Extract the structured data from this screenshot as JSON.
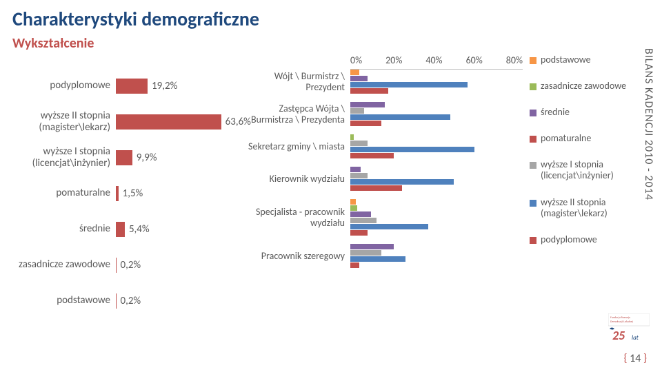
{
  "title": "Charakterystyki demograficzne",
  "subtitle": "Wykształcenie",
  "side_label": "BILANS KADENCJI 2010 - 2014",
  "page_number": "14",
  "chart1": {
    "type": "bar-horizontal",
    "max": 75,
    "bar_color": "#c0504d",
    "label_color": "#595959",
    "rows": [
      {
        "label": "podyplomowe",
        "value": 19.2,
        "text": "19,2%"
      },
      {
        "label": "wyższe II stopnia (magister\\lekarz)",
        "value": 63.6,
        "text": "63,6%"
      },
      {
        "label": "wyższe I stopnia (licencjat\\inżynier)",
        "value": 9.9,
        "text": "9,9%"
      },
      {
        "label": "pomaturalne",
        "value": 1.5,
        "text": "1,5%"
      },
      {
        "label": "średnie",
        "value": 5.4,
        "text": "5,4%"
      },
      {
        "label": "zasadnicze zawodowe",
        "value": 0.2,
        "text": "0,2%"
      },
      {
        "label": "podstawowe",
        "value": 0.2,
        "text": "0,2%"
      }
    ]
  },
  "chart2": {
    "type": "grouped-bar-horizontal",
    "max": 100,
    "axis_ticks": [
      "0%",
      "20%",
      "40%",
      "60%",
      "80%"
    ],
    "series_colors": {
      "podstawowe": "#f79646",
      "zasadnicze": "#9bbb59",
      "srednie": "#8064a2",
      "pomaturalne": "#c0504d",
      "wyzsze1": "#a6a6a6",
      "wyzsze2": "#4f81bd",
      "podyplomowe": "#c0504d"
    },
    "rows": [
      {
        "label": "Wójt \\ Burmistrz \\ Prezydent",
        "bars": [
          {
            "c": "#f79646",
            "v": 5
          },
          {
            "c": "#8064a2",
            "v": 10
          },
          {
            "c": "#4f81bd",
            "v": 68
          },
          {
            "c": "#c0504d",
            "v": 22
          }
        ]
      },
      {
        "label": "Zastępca Wójta \\ Burmistrza \\ Prezydenta",
        "bars": [
          {
            "c": "#8064a2",
            "v": 20
          },
          {
            "c": "#a6a6a6",
            "v": 8
          },
          {
            "c": "#4f81bd",
            "v": 58
          },
          {
            "c": "#c0504d",
            "v": 18
          }
        ]
      },
      {
        "label": "Sekretarz gminy \\ miasta",
        "bars": [
          {
            "c": "#9bbb59",
            "v": 2
          },
          {
            "c": "#a6a6a6",
            "v": 10
          },
          {
            "c": "#4f81bd",
            "v": 72
          },
          {
            "c": "#c0504d",
            "v": 25
          }
        ]
      },
      {
        "label": "Kierownik wydziału",
        "bars": [
          {
            "c": "#8064a2",
            "v": 6
          },
          {
            "c": "#a6a6a6",
            "v": 10
          },
          {
            "c": "#4f81bd",
            "v": 60
          },
          {
            "c": "#c0504d",
            "v": 30
          }
        ]
      },
      {
        "label": "Specjalista - pracownik wydziału",
        "bars": [
          {
            "c": "#f79646",
            "v": 3
          },
          {
            "c": "#9bbb59",
            "v": 4
          },
          {
            "c": "#8064a2",
            "v": 12
          },
          {
            "c": "#a6a6a6",
            "v": 15
          },
          {
            "c": "#4f81bd",
            "v": 45
          },
          {
            "c": "#c0504d",
            "v": 10
          }
        ]
      },
      {
        "label": "Pracownik szeregowy",
        "bars": [
          {
            "c": "#8064a2",
            "v": 25
          },
          {
            "c": "#a6a6a6",
            "v": 18
          },
          {
            "c": "#4f81bd",
            "v": 32
          },
          {
            "c": "#c0504d",
            "v": 5
          }
        ]
      }
    ]
  },
  "legend": [
    {
      "color": "#f79646",
      "label": "podstawowe"
    },
    {
      "color": "#9bbb59",
      "label": "zasadnicze zawodowe"
    },
    {
      "color": "#8064a2",
      "label": "średnie"
    },
    {
      "color": "#c0504d",
      "label": "pomaturalne"
    },
    {
      "color": "#a6a6a6",
      "label": "wyższe I stopnia (licencjat\\inżynier)"
    },
    {
      "color": "#4f81bd",
      "label": "wyższe II stopnia (magister\\lekarz)"
    },
    {
      "color": "#c0504d",
      "label": "podyplomowe"
    }
  ]
}
